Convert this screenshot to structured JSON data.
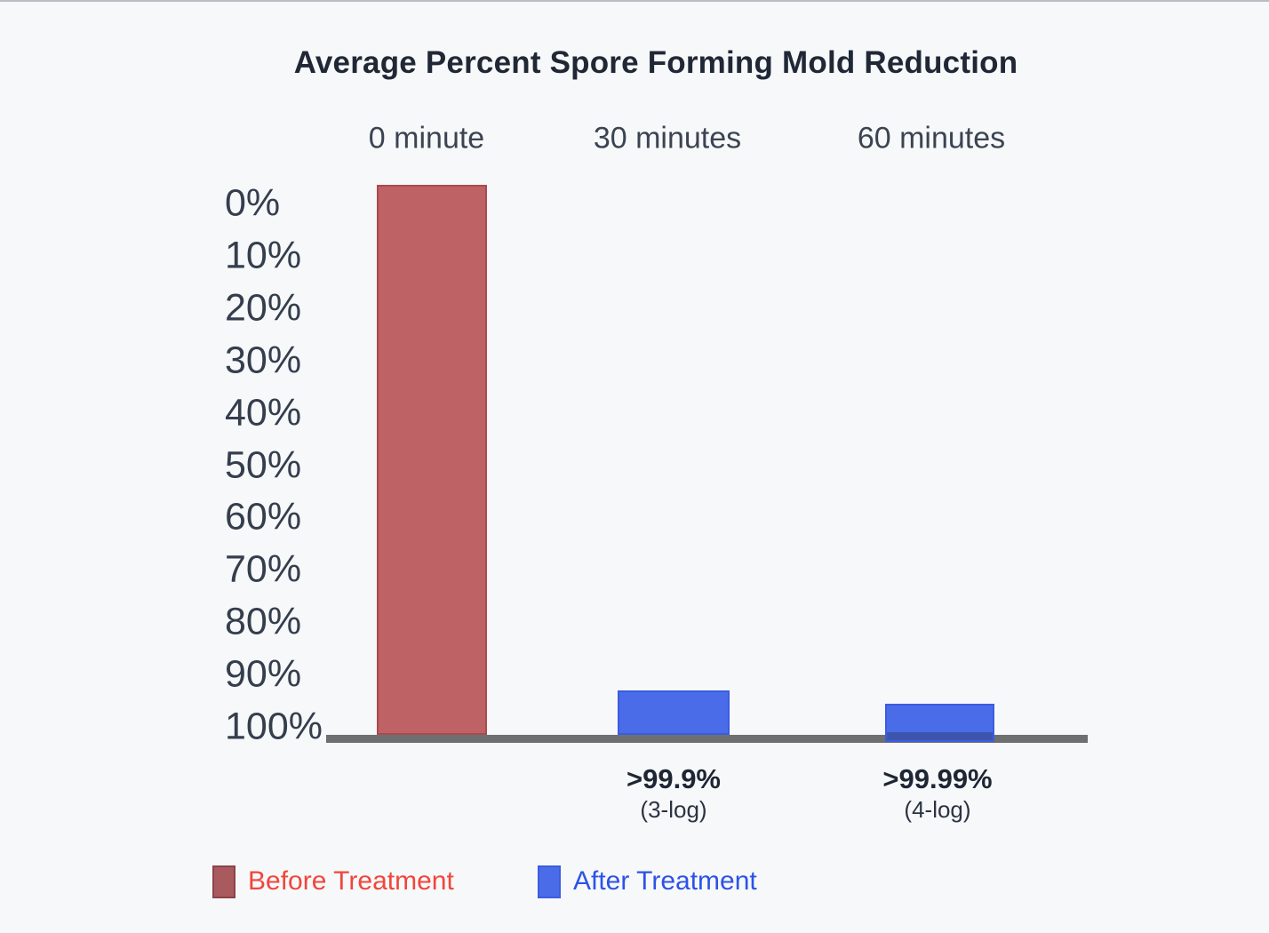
{
  "title": "Average Percent Spore Forming Mold Reduction",
  "column_headers": [
    "0 minute",
    "30 minutes",
    "60 minutes"
  ],
  "y_axis": {
    "ticks": [
      "0%",
      "10%",
      "20%",
      "30%",
      "40%",
      "50%",
      "60%",
      "70%",
      "80%",
      "90%",
      "100%"
    ]
  },
  "bars": [
    {
      "name": "bar-before-treatment-0min",
      "color": "red"
    },
    {
      "name": "bar-after-treatment-30min",
      "color": "blue"
    },
    {
      "name": "bar-after-treatment-60min",
      "color": "blue"
    }
  ],
  "annotations": [
    {
      "value": ">99.9%",
      "log": "(3-log)"
    },
    {
      "value": ">99.99%",
      "log": "(4-log)"
    }
  ],
  "legend": [
    {
      "label": "Before Treatment",
      "swatch": "red_legend",
      "text_color": "#f0463c"
    },
    {
      "label": "After Treatment",
      "swatch": "blue_legend",
      "text_color": "#2c53e6"
    }
  ],
  "colors": {
    "background": "#f7f8fa",
    "title_text": "#202836",
    "header_text": "#3b4451",
    "tick_text": "#353e4d",
    "annotation_value_text": "#1e2634",
    "annotation_log_text": "#2c3343",
    "baseline_gray": "#6e6f71",
    "red_fill": "#bf6266",
    "red_border": "#a94a4f",
    "red_legend_fill": "#a85a5e",
    "red_legend_border": "#8d4347",
    "blue_fill": "#4a6ce9",
    "blue_border": "#3c5ce0",
    "blue_legend_fill": "#4a6ce9",
    "blue_legend_border": "#3c5ce0"
  },
  "chart_data": {
    "type": "bar",
    "title": "Average Percent Spore Forming Mold Reduction",
    "categories": [
      "0 minute",
      "30 minutes",
      "60 minutes"
    ],
    "series": [
      {
        "name": "Before Treatment",
        "color": "#bf6266",
        "reduction_pct": [
          0,
          null,
          null
        ]
      },
      {
        "name": "After Treatment",
        "color": "#4a6ce9",
        "reduction_pct": [
          null,
          99.9,
          99.99
        ],
        "qualifier": "greater-than"
      }
    ],
    "value_annotations": [
      null,
      ">99.9% (3-log)",
      ">99.99% (4-log)"
    ],
    "y_axis": {
      "tick_labels": [
        "0%",
        "10%",
        "20%",
        "30%",
        "40%",
        "50%",
        "60%",
        "70%",
        "80%",
        "90%",
        "100%"
      ],
      "range": [
        0,
        100
      ],
      "inverted": true
    },
    "bar_visual_height_fraction_of_axis": [
      1.0,
      0.081,
      0.069
    ],
    "grid": false,
    "legend_position": "bottom-left",
    "notes": "Illustrative bars: red bar spans the full 0%-100% axis; blue stubs sit on the baseline representing >99.9% (3-log) and >99.99% (4-log) spore-forming mold reduction."
  }
}
